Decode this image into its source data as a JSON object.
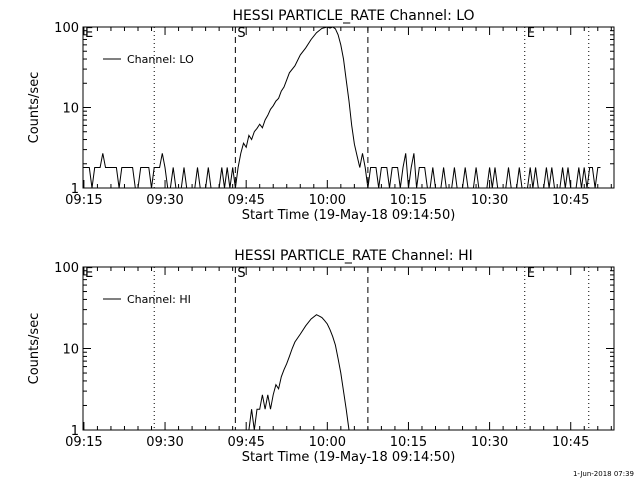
{
  "footer": {
    "timestamp": "1-Jun-2018 07:39"
  },
  "colors": {
    "background": "#ffffff",
    "line": "#000000"
  },
  "chart_data": [
    {
      "type": "line",
      "title": "HESSI PARTICLE_RATE Channel: LO",
      "xlabel": "Start Time (19-May-18 09:14:50)",
      "ylabel": "Counts/sec",
      "yscale": "log",
      "ylim": [
        1,
        100
      ],
      "xlim": [
        "09:14:50",
        "10:53:00"
      ],
      "xticks": [
        "09:15",
        "09:30",
        "09:45",
        "10:00",
        "10:15",
        "10:30",
        "10:45"
      ],
      "yticks": [
        "1",
        "10",
        "100"
      ],
      "legend": {
        "position": "top-left",
        "entries": [
          "Channel: LO"
        ]
      },
      "markers": [
        {
          "time": "09:14:50",
          "style": "dotted",
          "label": "E"
        },
        {
          "time": "09:28:00",
          "style": "dotted",
          "label": ""
        },
        {
          "time": "09:43:00",
          "style": "dashed",
          "label": "S"
        },
        {
          "time": "10:07:30",
          "style": "dashed",
          "label": ""
        },
        {
          "time": "10:36:30",
          "style": "dotted",
          "label": "E"
        },
        {
          "time": "10:48:20",
          "style": "dotted",
          "label": ""
        }
      ],
      "series": [
        {
          "name": "Channel: LO",
          "points": [
            [
              "09:14:50",
              1.8
            ],
            [
              "09:16:00",
              1.8
            ],
            [
              "09:16:30",
              1
            ],
            [
              "09:17:00",
              1.8
            ],
            [
              "09:18:00",
              1.8
            ],
            [
              "09:18:30",
              2.7
            ],
            [
              "09:19:00",
              1.8
            ],
            [
              "09:21:00",
              1.8
            ],
            [
              "09:21:30",
              1
            ],
            [
              "09:22:00",
              1.8
            ],
            [
              "09:24:00",
              1.8
            ],
            [
              "09:24:30",
              1
            ],
            [
              "09:25:00",
              1
            ],
            [
              "09:25:30",
              1.8
            ],
            [
              "09:27:00",
              1.8
            ],
            [
              "09:27:30",
              1
            ],
            [
              "09:28:00",
              1.8
            ],
            [
              "09:29:00",
              1.8
            ],
            [
              "09:29:30",
              2.7
            ],
            [
              "09:30:00",
              1.8
            ],
            [
              "09:30:30",
              1
            ],
            [
              "09:31:00",
              1
            ],
            [
              "09:31:30",
              1.8
            ],
            [
              "09:32:00",
              1
            ],
            [
              "09:33:00",
              1
            ],
            [
              "09:33:30",
              1.8
            ],
            [
              "09:34:00",
              1
            ],
            [
              "09:35:30",
              1
            ],
            [
              "09:36:00",
              1.8
            ],
            [
              "09:36:30",
              1
            ],
            [
              "09:37:30",
              1
            ],
            [
              "09:38:00",
              1.8
            ],
            [
              "09:38:30",
              1
            ],
            [
              "09:40:00",
              1
            ],
            [
              "09:40:30",
              1.8
            ],
            [
              "09:41:00",
              1
            ],
            [
              "09:41:30",
              1.8
            ],
            [
              "09:42:00",
              1
            ],
            [
              "09:42:30",
              1.8
            ],
            [
              "09:43:00",
              1
            ],
            [
              "09:43:30",
              1.8
            ],
            [
              "09:44:00",
              2.7
            ],
            [
              "09:44:30",
              3.6
            ],
            [
              "09:45:00",
              3.2
            ],
            [
              "09:45:30",
              4.5
            ],
            [
              "09:46:00",
              4.0
            ],
            [
              "09:46:30",
              5.0
            ],
            [
              "09:47:00",
              5.5
            ],
            [
              "09:47:30",
              6.2
            ],
            [
              "09:48:00",
              5.6
            ],
            [
              "09:48:30",
              7.0
            ],
            [
              "09:49:00",
              8.0
            ],
            [
              "09:49:30",
              9.5
            ],
            [
              "09:50:00",
              10.5
            ],
            [
              "09:50:30",
              12
            ],
            [
              "09:51:00",
              13
            ],
            [
              "09:51:30",
              16
            ],
            [
              "09:52:00",
              18
            ],
            [
              "09:52:30",
              22
            ],
            [
              "09:53:00",
              27
            ],
            [
              "09:54:00",
              33
            ],
            [
              "09:55:00",
              45
            ],
            [
              "09:56:00",
              55
            ],
            [
              "09:57:00",
              70
            ],
            [
              "09:58:00",
              85
            ],
            [
              "09:59:00",
              96
            ],
            [
              "10:00:00",
              100
            ],
            [
              "10:00:30",
              97
            ],
            [
              "10:01:00",
              100
            ],
            [
              "10:01:30",
              95
            ],
            [
              "10:02:00",
              80
            ],
            [
              "10:02:30",
              60
            ],
            [
              "10:03:00",
              40
            ],
            [
              "10:03:30",
              22
            ],
            [
              "10:04:00",
              12
            ],
            [
              "10:04:30",
              6
            ],
            [
              "10:05:00",
              3.5
            ],
            [
              "10:05:30",
              2.5
            ],
            [
              "10:06:00",
              1.8
            ],
            [
              "10:06:30",
              2.7
            ],
            [
              "10:07:00",
              1.8
            ],
            [
              "10:07:30",
              1
            ],
            [
              "10:08:00",
              1.8
            ],
            [
              "10:09:00",
              1.8
            ],
            [
              "10:09:30",
              1
            ],
            [
              "10:10:00",
              1.8
            ],
            [
              "10:11:00",
              1.8
            ],
            [
              "10:11:30",
              1
            ],
            [
              "10:12:00",
              1.8
            ],
            [
              "10:13:00",
              1.8
            ],
            [
              "10:13:30",
              1
            ],
            [
              "10:14:00",
              1.8
            ],
            [
              "10:14:30",
              2.7
            ],
            [
              "10:15:00",
              1
            ],
            [
              "10:15:30",
              1.8
            ],
            [
              "10:16:00",
              2.7
            ],
            [
              "10:16:30",
              1
            ],
            [
              "10:17:00",
              1.8
            ],
            [
              "10:18:00",
              1.8
            ],
            [
              "10:18:30",
              1
            ],
            [
              "10:19:00",
              1
            ],
            [
              "10:19:30",
              1.8
            ],
            [
              "10:20:00",
              1
            ],
            [
              "10:21:00",
              1
            ],
            [
              "10:21:30",
              1.8
            ],
            [
              "10:22:00",
              1
            ],
            [
              "10:23:00",
              1
            ],
            [
              "10:23:30",
              1.8
            ],
            [
              "10:24:00",
              1
            ],
            [
              "10:25:00",
              1
            ],
            [
              "10:25:30",
              1.8
            ],
            [
              "10:26:00",
              1
            ],
            [
              "10:27:00",
              1
            ],
            [
              "10:27:30",
              1.8
            ],
            [
              "10:28:00",
              1
            ],
            [
              "10:29:30",
              1
            ],
            [
              "10:30:00",
              1.8
            ],
            [
              "10:30:30",
              1
            ],
            [
              "10:31:00",
              1.8
            ],
            [
              "10:31:30",
              1
            ],
            [
              "10:33:00",
              1
            ],
            [
              "10:33:30",
              1.8
            ],
            [
              "10:34:00",
              1
            ],
            [
              "10:35:00",
              1
            ],
            [
              "10:35:30",
              1.8
            ],
            [
              "10:36:00",
              1
            ],
            [
              "10:37:00",
              1
            ],
            [
              "10:37:30",
              1.8
            ],
            [
              "10:38:00",
              1
            ],
            [
              "10:38:30",
              1.8
            ],
            [
              "10:39:00",
              1
            ],
            [
              "10:40:00",
              1
            ],
            [
              "10:40:30",
              1.8
            ],
            [
              "10:41:00",
              1
            ],
            [
              "10:41:30",
              1.8
            ],
            [
              "10:42:00",
              1
            ],
            [
              "10:43:00",
              1
            ],
            [
              "10:43:30",
              1.8
            ],
            [
              "10:44:00",
              1
            ],
            [
              "10:44:30",
              1.8
            ],
            [
              "10:45:00",
              1
            ],
            [
              "10:46:00",
              1
            ],
            [
              "10:46:30",
              1.8
            ],
            [
              "10:47:00",
              1
            ],
            [
              "10:47:30",
              1.8
            ],
            [
              "10:48:00",
              1
            ],
            [
              "10:48:30",
              1.8
            ],
            [
              "10:49:00",
              1.8
            ],
            [
              "10:49:30",
              1
            ],
            [
              "10:50:00",
              1.8
            ],
            [
              "10:50:30",
              1.8
            ]
          ]
        }
      ]
    },
    {
      "type": "line",
      "title": "HESSI PARTICLE_RATE Channel: HI",
      "xlabel": "Start Time (19-May-18 09:14:50)",
      "ylabel": "Counts/sec",
      "yscale": "log",
      "ylim": [
        1,
        100
      ],
      "xlim": [
        "09:14:50",
        "10:53:00"
      ],
      "xticks": [
        "09:15",
        "09:30",
        "09:45",
        "10:00",
        "10:15",
        "10:30",
        "10:45"
      ],
      "yticks": [
        "1",
        "10",
        "100"
      ],
      "legend": {
        "position": "top-left",
        "entries": [
          "Channel: HI"
        ]
      },
      "markers": [
        {
          "time": "09:14:50",
          "style": "dotted",
          "label": "E"
        },
        {
          "time": "09:28:00",
          "style": "dotted",
          "label": ""
        },
        {
          "time": "09:43:00",
          "style": "dashed",
          "label": "S"
        },
        {
          "time": "10:07:30",
          "style": "dashed",
          "label": ""
        },
        {
          "time": "10:36:30",
          "style": "dotted",
          "label": "E"
        },
        {
          "time": "10:48:20",
          "style": "dotted",
          "label": ""
        }
      ],
      "series": [
        {
          "name": "Channel: HI",
          "points": [
            [
              "09:45:30",
              1
            ],
            [
              "09:46:00",
              1.8
            ],
            [
              "09:46:30",
              1
            ],
            [
              "09:47:00",
              1.8
            ],
            [
              "09:47:30",
              1.8
            ],
            [
              "09:48:00",
              2.7
            ],
            [
              "09:48:30",
              1.8
            ],
            [
              "09:49:00",
              2.7
            ],
            [
              "09:49:30",
              1.8
            ],
            [
              "09:50:00",
              2.7
            ],
            [
              "09:50:30",
              3.6
            ],
            [
              "09:51:00",
              3.2
            ],
            [
              "09:51:30",
              4.5
            ],
            [
              "09:52:00",
              5.5
            ],
            [
              "09:52:30",
              6.5
            ],
            [
              "09:53:00",
              8
            ],
            [
              "09:53:30",
              10
            ],
            [
              "09:54:00",
              12
            ],
            [
              "09:55:00",
              15
            ],
            [
              "09:56:00",
              19
            ],
            [
              "09:57:00",
              23
            ],
            [
              "09:58:00",
              26
            ],
            [
              "09:58:30",
              25
            ],
            [
              "09:59:00",
              24
            ],
            [
              "09:59:30",
              22
            ],
            [
              "10:00:00",
              20
            ],
            [
              "10:00:30",
              17
            ],
            [
              "10:01:00",
              14
            ],
            [
              "10:01:30",
              11
            ],
            [
              "10:02:00",
              7.5
            ],
            [
              "10:02:30",
              5
            ],
            [
              "10:03:00",
              3
            ],
            [
              "10:03:30",
              1.8
            ],
            [
              "10:04:00",
              1
            ]
          ]
        }
      ]
    }
  ]
}
